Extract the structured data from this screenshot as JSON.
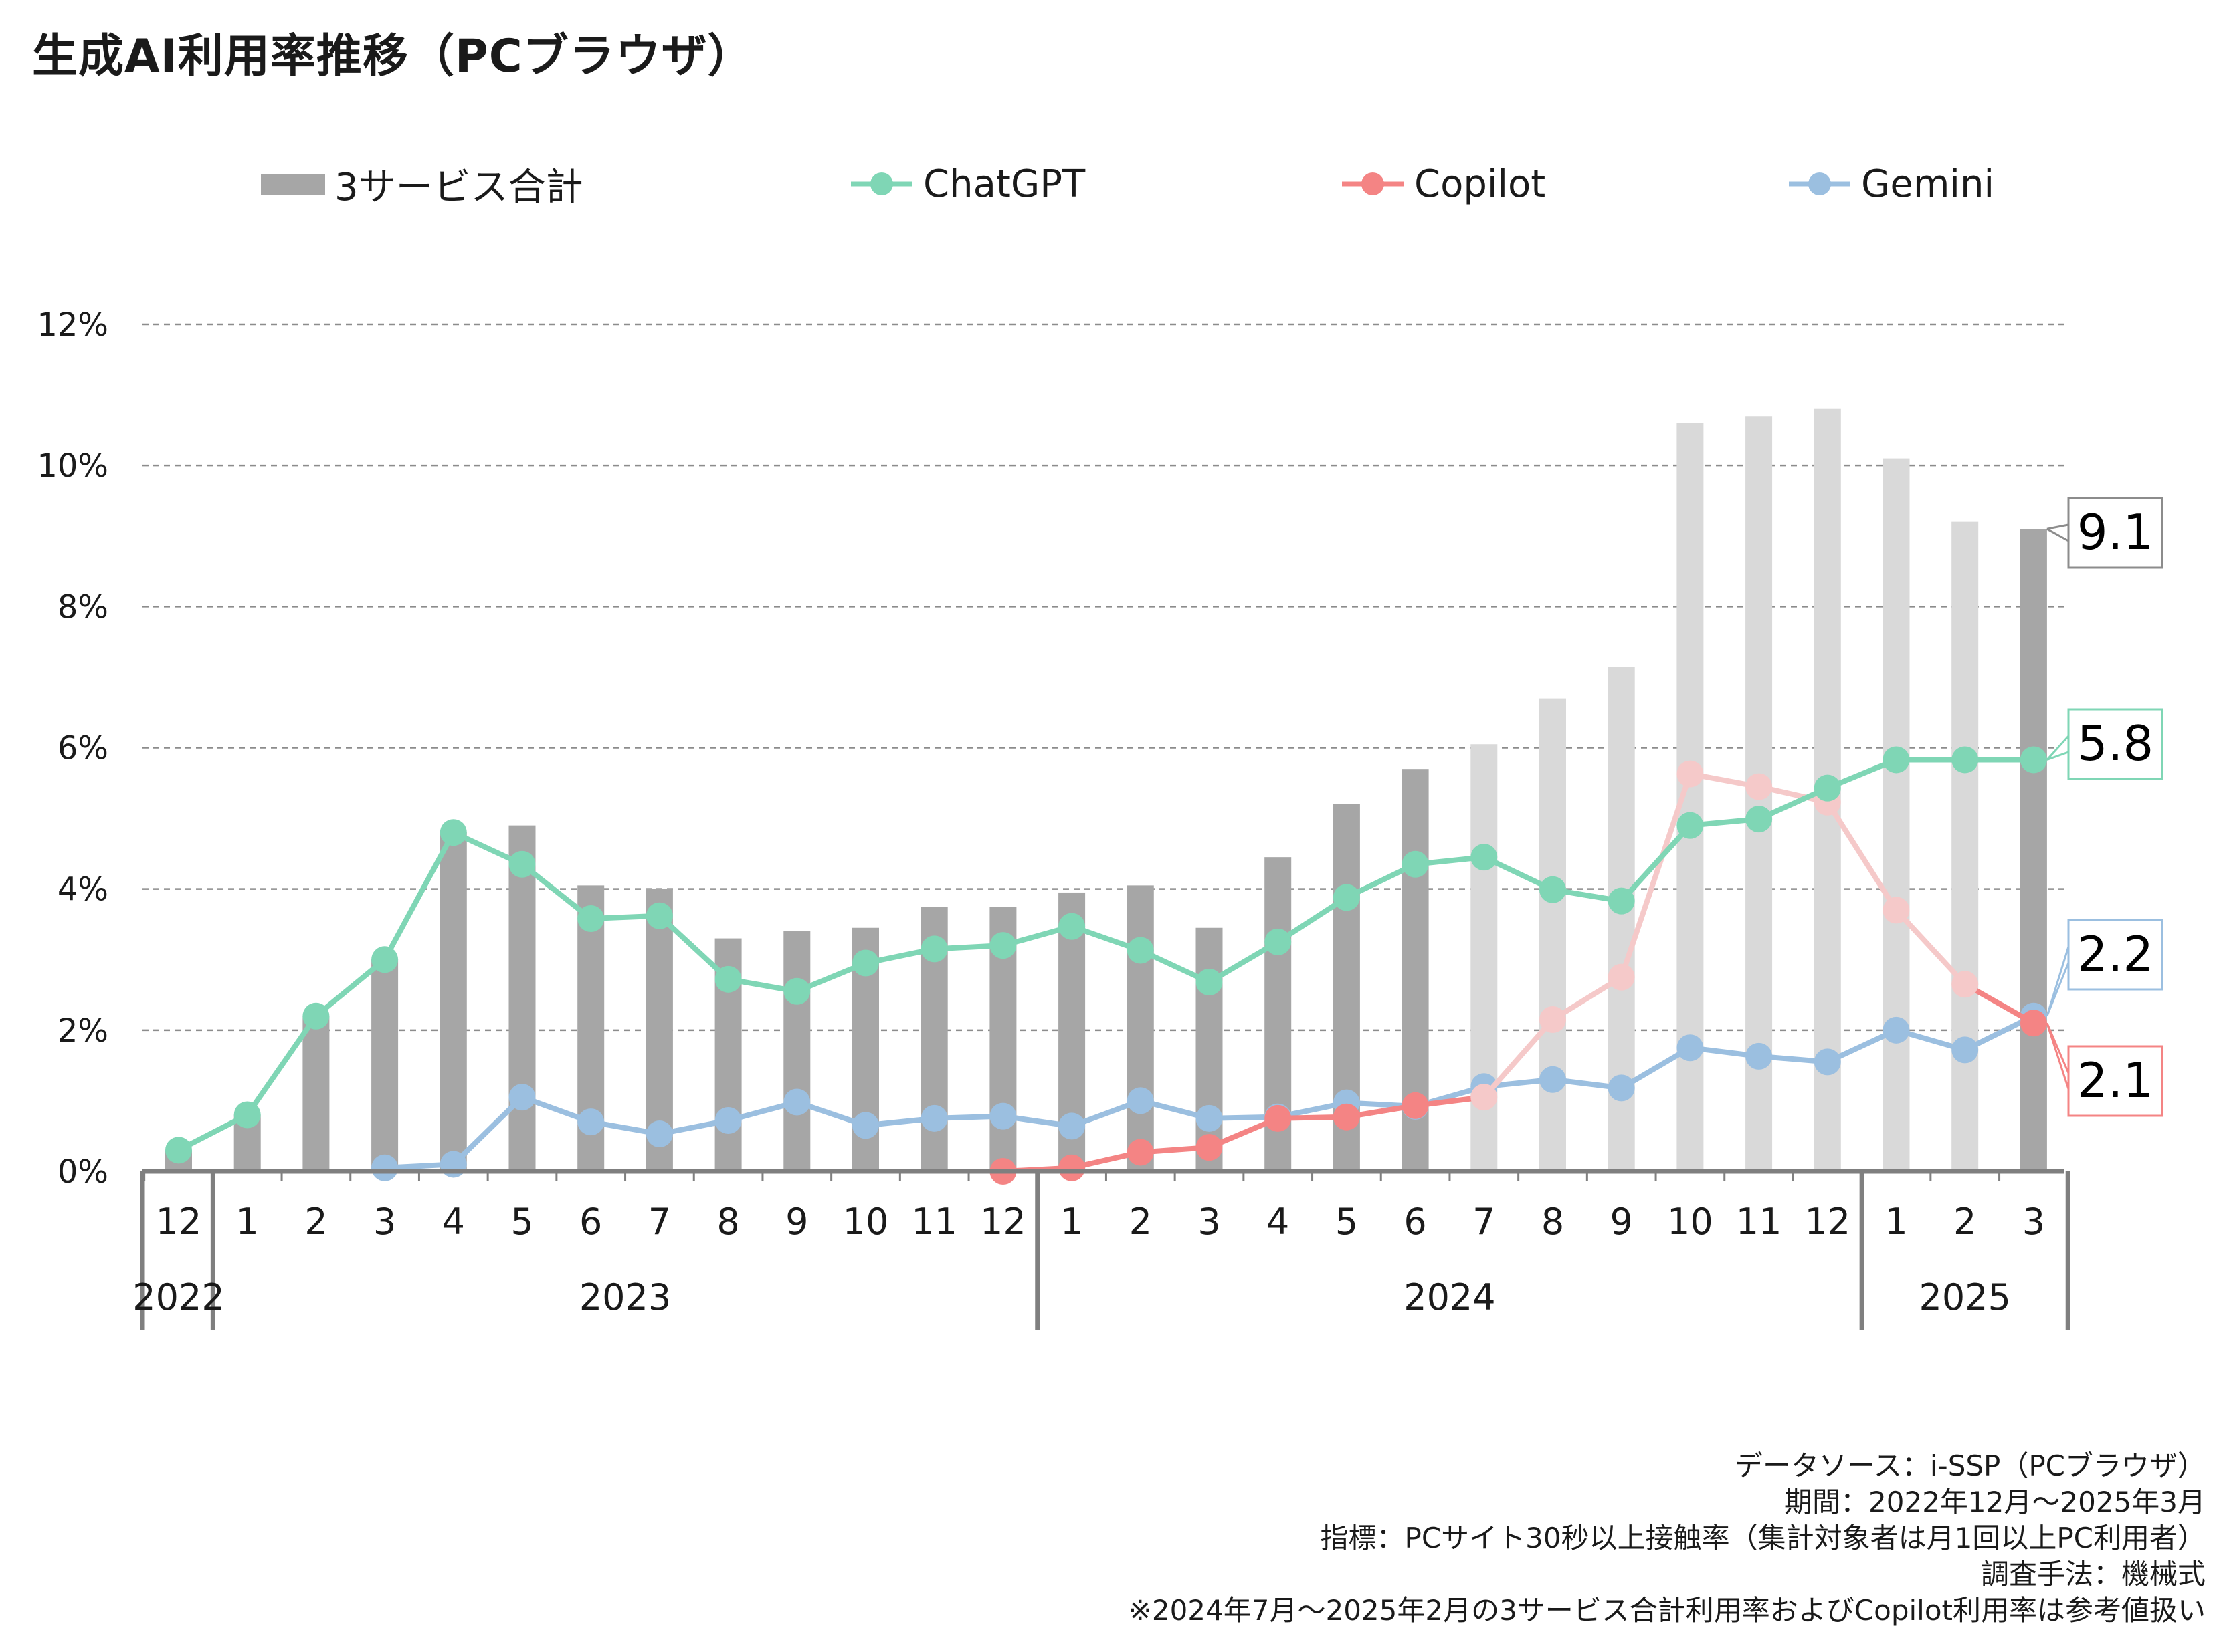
{
  "title": "生成AI利用率推移（PCブラウザ）",
  "legend": [
    {
      "label": "3サービス合計",
      "kind": "bar"
    },
    {
      "label": "ChatGPT",
      "kind": "line",
      "color": "#7fd6b5"
    },
    {
      "label": "Copilot",
      "kind": "line",
      "color": "#f48484"
    },
    {
      "label": "Gemini",
      "kind": "line",
      "color": "#9bbfe0"
    }
  ],
  "notes": [
    "データソース：i-SSP（PCブラウザ）",
    "期間：2022年12月～2025年3月",
    "指標：PCサイト30秒以上接触率（集計対象者は月1回以上PC利用者）",
    "調査手法：機械式",
    "※2024年7月～2025年2月の3サービス合計利用率およびCopilot利用率は参考値扱い"
  ],
  "chart_data": {
    "type": "bar+line",
    "y_ticks": [
      "0%",
      "2%",
      "4%",
      "6%",
      "8%",
      "10%",
      "12%"
    ],
    "ylim": [
      0,
      12
    ],
    "grid": true,
    "legend_position": "top",
    "categories": [
      "12",
      "1",
      "2",
      "3",
      "4",
      "5",
      "6",
      "7",
      "8",
      "9",
      "10",
      "11",
      "12",
      "1",
      "2",
      "3",
      "4",
      "5",
      "6",
      "7",
      "8",
      "9",
      "10",
      "11",
      "12",
      "1",
      "2",
      "3"
    ],
    "years": [
      {
        "label": "2022",
        "start": 0,
        "end": 0
      },
      {
        "label": "2023",
        "start": 1,
        "end": 12
      },
      {
        "label": "2024",
        "start": 13,
        "end": 24
      },
      {
        "label": "2025",
        "start": 25,
        "end": 27
      }
    ],
    "reference_range": [
      19,
      26
    ],
    "colors": {
      "bar": "#a6a6a6",
      "bar_reference": "#d9d9d9",
      "copilot_reference": "#f5c9c9",
      "chatgpt_reference": "#7fd6b5",
      "gemini_reference": "#9bbfe0"
    },
    "series": [
      {
        "name": "3サービス合計",
        "kind": "bar",
        "values": [
          0.3,
          0.8,
          2.2,
          3.0,
          4.8,
          4.9,
          4.05,
          4.0,
          3.3,
          3.4,
          3.45,
          3.75,
          3.75,
          3.95,
          4.05,
          3.45,
          4.45,
          5.2,
          5.7,
          6.05,
          6.7,
          7.15,
          10.6,
          10.7,
          10.8,
          10.1,
          9.2,
          9.1
        ]
      },
      {
        "name": "ChatGPT",
        "kind": "line",
        "color": "#7fd6b5",
        "values": [
          0.3,
          0.8,
          2.2,
          3.0,
          4.8,
          4.35,
          3.58,
          3.62,
          2.72,
          2.55,
          2.95,
          3.15,
          3.2,
          3.47,
          3.13,
          2.68,
          3.25,
          3.88,
          4.35,
          4.45,
          3.99,
          3.83,
          4.9,
          4.99,
          5.43,
          5.83,
          5.83,
          5.83
        ]
      },
      {
        "name": "Copilot",
        "kind": "line",
        "color": "#f48484",
        "values": [
          null,
          null,
          null,
          null,
          null,
          null,
          null,
          null,
          null,
          null,
          null,
          null,
          0.0,
          0.05,
          0.27,
          0.34,
          0.75,
          0.77,
          0.93,
          1.05,
          2.15,
          2.75,
          5.63,
          5.45,
          5.23,
          3.7,
          2.65,
          2.1
        ]
      },
      {
        "name": "Gemini",
        "kind": "line",
        "color": "#9bbfe0",
        "values": [
          null,
          null,
          null,
          0.05,
          0.1,
          1.05,
          0.7,
          0.53,
          0.72,
          0.98,
          0.65,
          0.75,
          0.78,
          0.64,
          1.0,
          0.75,
          0.77,
          0.97,
          0.92,
          1.2,
          1.3,
          1.18,
          1.75,
          1.63,
          1.55,
          2.0,
          1.72,
          2.2
        ]
      }
    ],
    "end_labels": [
      {
        "series": "3サービス合計",
        "text": "9.1"
      },
      {
        "series": "ChatGPT",
        "text": "5.8"
      },
      {
        "series": "Gemini",
        "text": "2.2"
      },
      {
        "series": "Copilot",
        "text": "2.1"
      }
    ]
  }
}
